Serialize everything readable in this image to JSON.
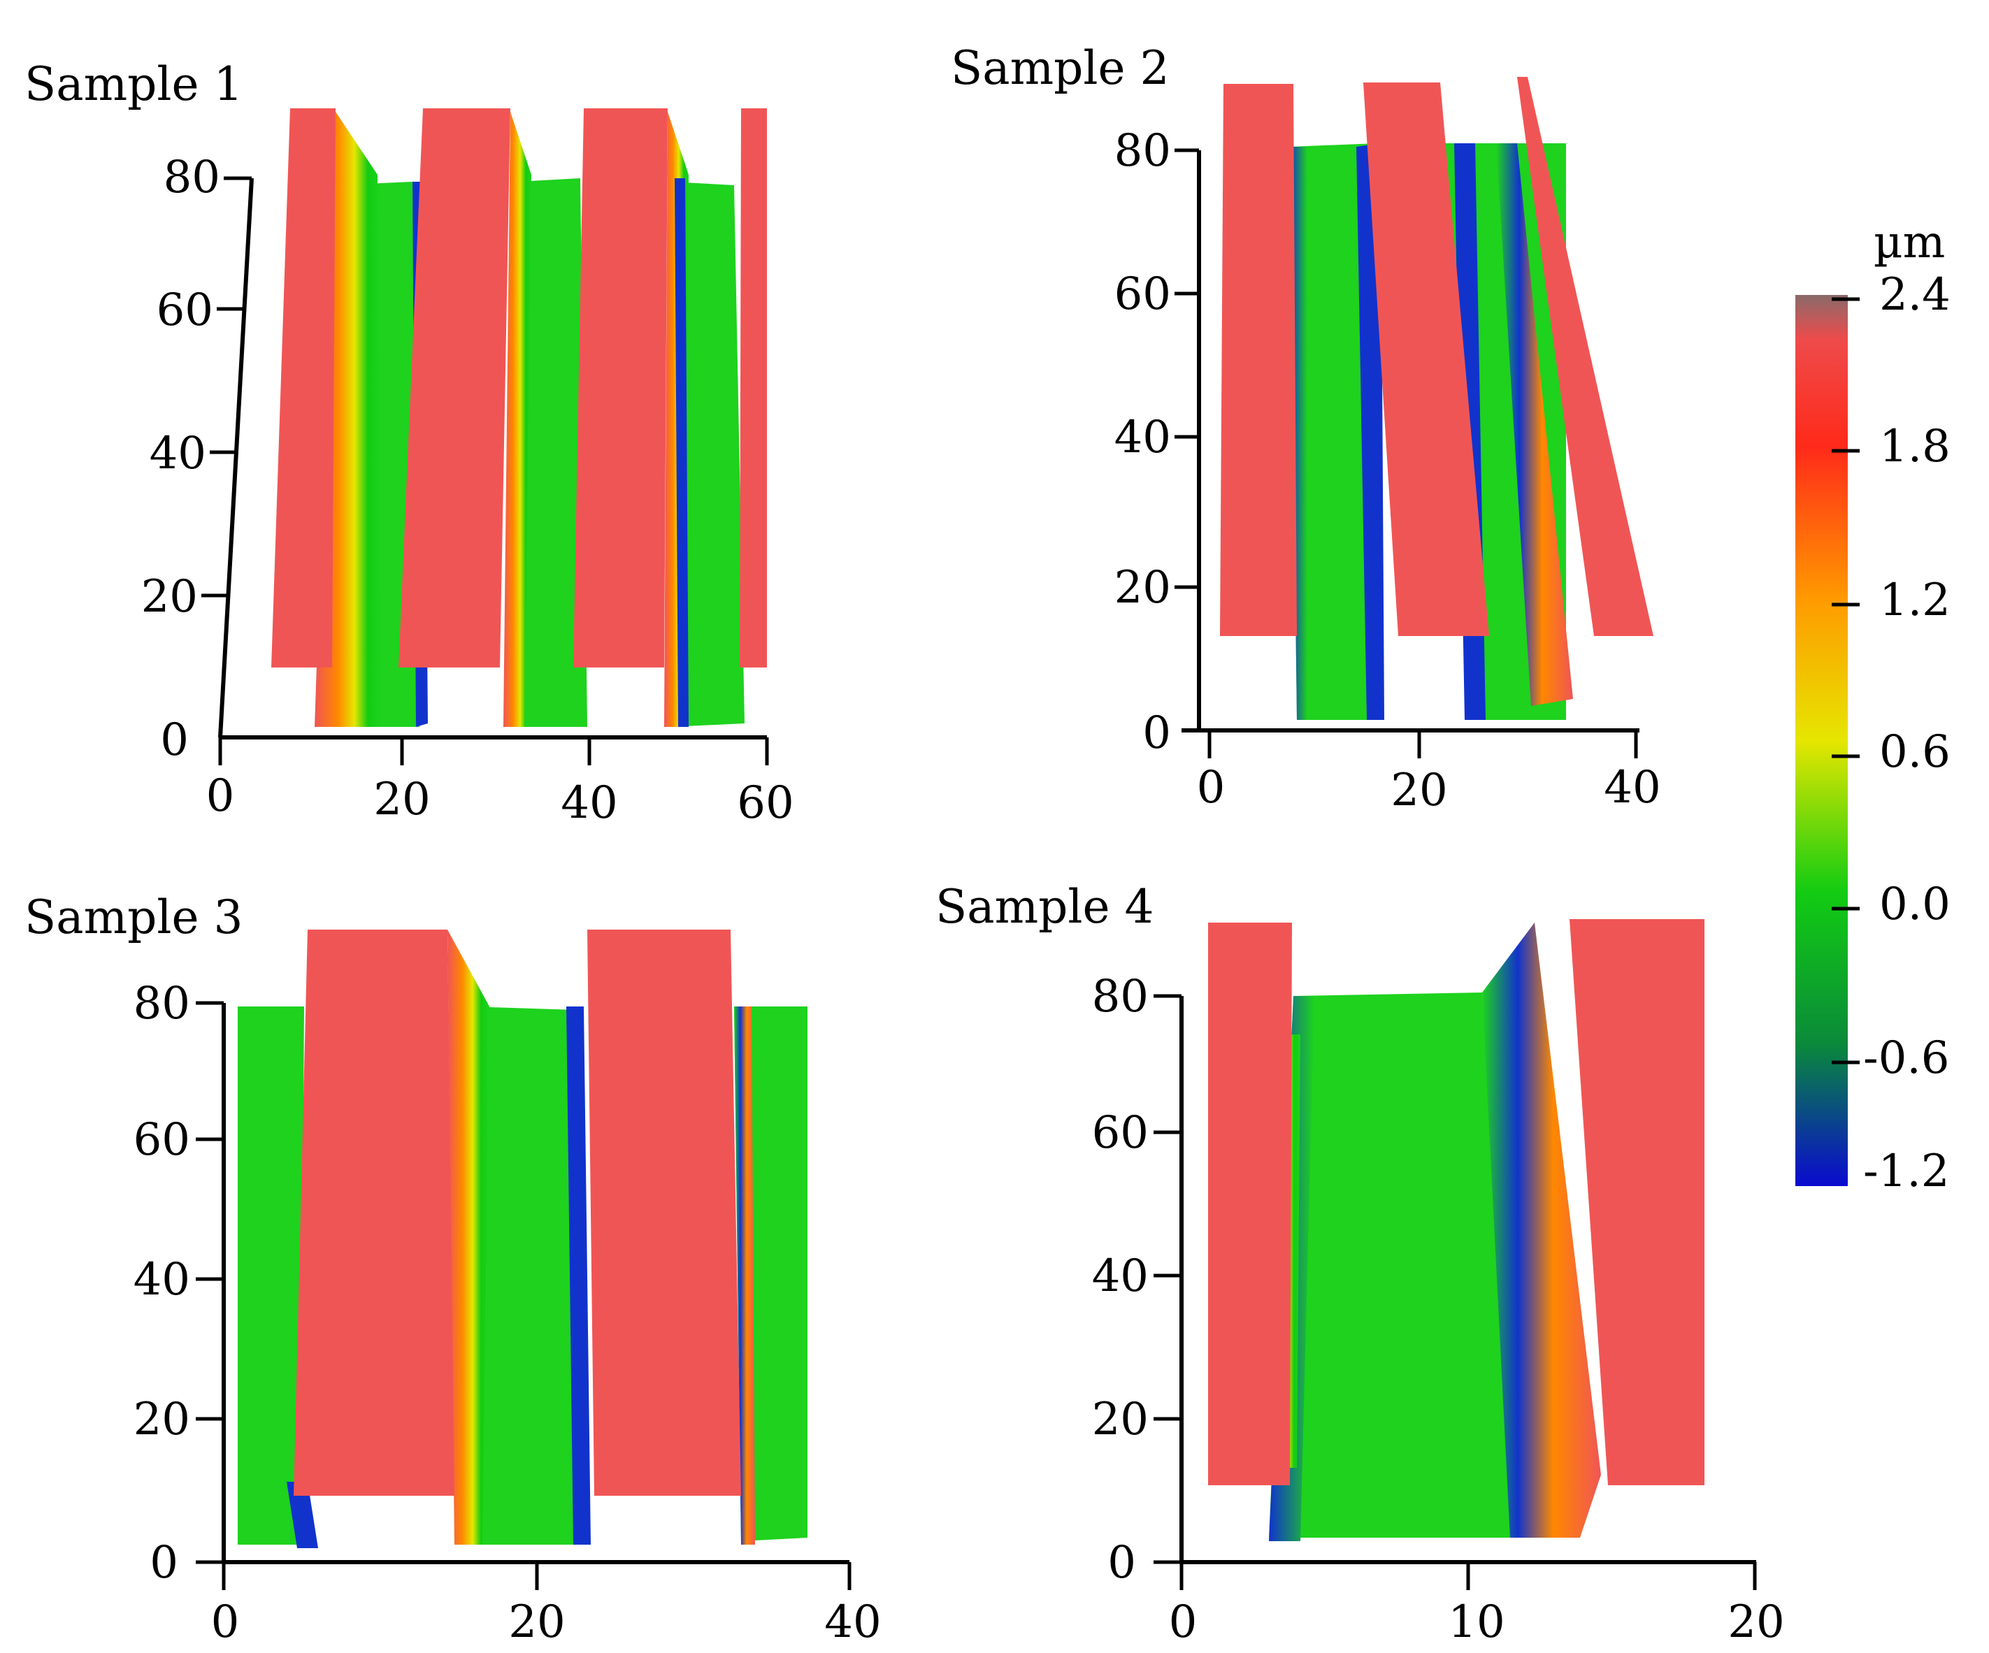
{
  "chart_data": [
    {
      "type": "heatmap",
      "title": "Sample 1",
      "x_ticks": [
        0,
        20,
        40,
        60
      ],
      "y_ticks": [
        0,
        20,
        40,
        60,
        80
      ],
      "xlim": [
        0,
        60
      ],
      "ylim": [
        0,
        80
      ],
      "xlabel": "",
      "ylabel": "",
      "ridges": 4,
      "grooves": 3
    },
    {
      "type": "heatmap",
      "title": "Sample 2",
      "x_ticks": [
        0,
        20,
        40
      ],
      "y_ticks": [
        0,
        20,
        40,
        60,
        80
      ],
      "xlim": [
        0,
        40
      ],
      "ylim": [
        0,
        80
      ],
      "xlabel": "",
      "ylabel": "",
      "ridges": 3,
      "grooves": 2
    },
    {
      "type": "heatmap",
      "title": "Sample 3",
      "x_ticks": [
        0,
        20,
        40
      ],
      "y_ticks": [
        0,
        20,
        40,
        60,
        80
      ],
      "xlim": [
        0,
        40
      ],
      "ylim": [
        0,
        80
      ],
      "xlabel": "",
      "ylabel": "",
      "ridges": 2,
      "grooves": 3
    },
    {
      "type": "heatmap",
      "title": "Sample 4",
      "x_ticks": [
        0,
        10,
        20
      ],
      "y_ticks": [
        0,
        20,
        40,
        60,
        80
      ],
      "xlim": [
        0,
        20
      ],
      "ylim": [
        0,
        80
      ],
      "xlabel": "",
      "ylabel": "",
      "ridges": 2,
      "grooves": 1
    }
  ],
  "colorbar": {
    "unit": "µm",
    "ticks": [
      "2.4",
      "1.8",
      "1.2",
      "0.6",
      "0.0",
      "-0.6",
      "-1.2"
    ],
    "range": [
      -1.2,
      2.4
    ],
    "colors": [
      "#0a0ad0",
      "#0a8a3a",
      "#12cc12",
      "#e6e600",
      "#ff9900",
      "#ff2a1a",
      "#ee4b4b",
      "#8a6a6a"
    ]
  },
  "colors": {
    "ridge": "#f05555",
    "groove": "#1ed21e",
    "edge_blue": "#1133cc",
    "edge_orange": "#ff8800"
  }
}
